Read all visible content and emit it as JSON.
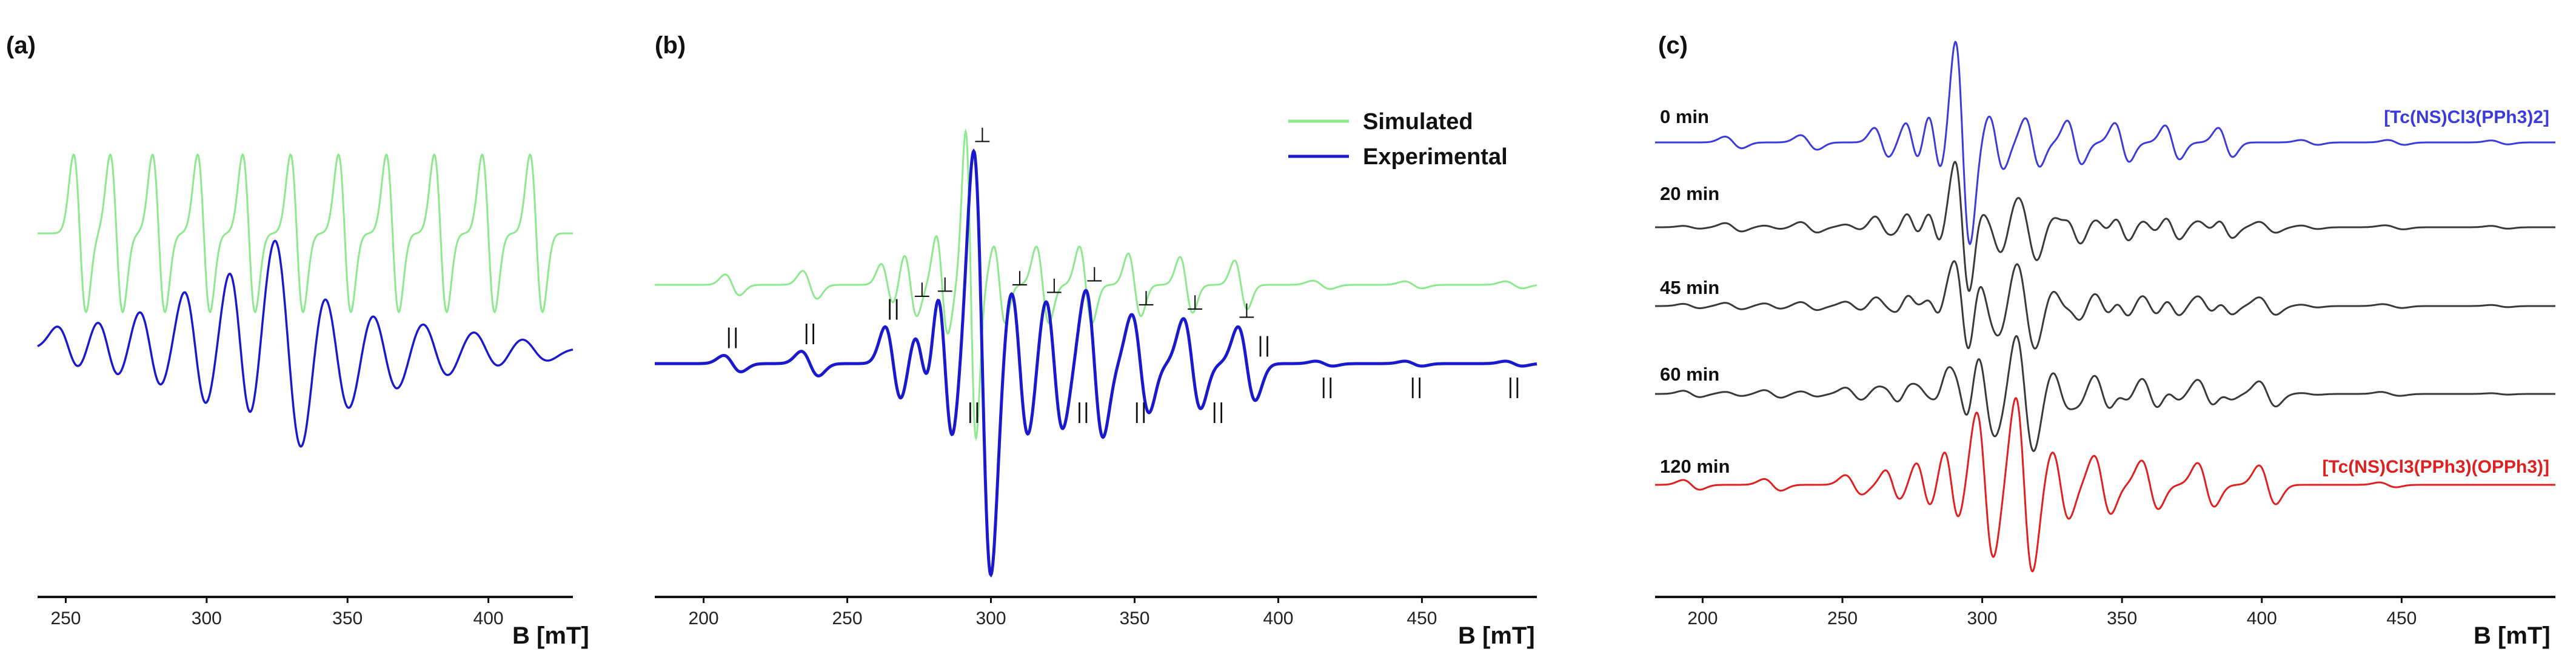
{
  "colors": {
    "simulated": "#8ee88e",
    "experimental": "#1a1acc",
    "experimental_c": "#3b3bdd",
    "intermediate": "#3a3a3a",
    "final": "#e02020",
    "axis": "#111111",
    "marker": "#111111"
  },
  "chart_data": [
    {
      "type": "line",
      "panel_label": "(a)",
      "xlabel": "B [mT]",
      "ylabel": "",
      "xlim": [
        240,
        430
      ],
      "xticks": [
        250,
        300,
        350,
        400
      ],
      "grid": false,
      "series": [
        {
          "name": "",
          "color_key": "simulated",
          "lines": [
            {
              "center": 255,
              "amp": 1.0,
              "width": 2.2
            },
            {
              "center": 268,
              "amp": 1.0,
              "width": 2.2
            },
            {
              "center": 283,
              "amp": 1.0,
              "width": 2.2
            },
            {
              "center": 299,
              "amp": 1.0,
              "width": 2.2
            },
            {
              "center": 315,
              "amp": 1.0,
              "width": 2.2
            },
            {
              "center": 332,
              "amp": 1.0,
              "width": 2.2
            },
            {
              "center": 349,
              "amp": 1.0,
              "width": 2.2
            },
            {
              "center": 366,
              "amp": 1.0,
              "width": 2.2
            },
            {
              "center": 383,
              "amp": 1.0,
              "width": 2.2
            },
            {
              "center": 400,
              "amp": 1.0,
              "width": 2.2
            },
            {
              "center": 417,
              "amp": 1.0,
              "width": 2.2
            }
          ]
        },
        {
          "name": "",
          "color_key": "experimental",
          "lines": [
            {
              "center": 251,
              "amp": 0.45,
              "width": 4
            },
            {
              "center": 265,
              "amp": 0.6,
              "width": 4
            },
            {
              "center": 280,
              "amp": 0.8,
              "width": 4
            },
            {
              "center": 296,
              "amp": 1.2,
              "width": 4
            },
            {
              "center": 312,
              "amp": 1.6,
              "width": 4
            },
            {
              "center": 329,
              "amp": 2.3,
              "width": 5
            },
            {
              "center": 346,
              "amp": 1.4,
              "width": 5
            },
            {
              "center": 363,
              "amp": 0.9,
              "width": 5
            },
            {
              "center": 381,
              "amp": 0.6,
              "width": 5
            },
            {
              "center": 399,
              "amp": 0.4,
              "width": 5
            },
            {
              "center": 416,
              "amp": 0.25,
              "width": 5
            }
          ]
        }
      ]
    },
    {
      "type": "line",
      "panel_label": "(b)",
      "xlabel": "B [mT]",
      "ylabel": "",
      "xlim": [
        183,
        490
      ],
      "xticks": [
        200,
        250,
        300,
        350,
        400,
        450
      ],
      "grid": false,
      "legend": {
        "position": "top-right",
        "entries": [
          "Simulated",
          "Experimental"
        ]
      },
      "series": [
        {
          "name": "Simulated",
          "color_key": "simulated",
          "lines": [
            {
              "center": 210,
              "amp": 0.15,
              "width": 2.5
            },
            {
              "center": 237,
              "amp": 0.2,
              "width": 2.5
            },
            {
              "center": 264,
              "amp": 0.3,
              "width": 2.2
            },
            {
              "center": 272,
              "amp": 0.45,
              "width": 2.2
            },
            {
              "center": 283,
              "amp": 0.7,
              "width": 2.0
            },
            {
              "center": 293,
              "amp": 2.2,
              "width": 1.8
            },
            {
              "center": 303,
              "amp": 0.55,
              "width": 2.0
            },
            {
              "center": 318,
              "amp": 0.55,
              "width": 2.2
            },
            {
              "center": 333,
              "amp": 0.55,
              "width": 2.2
            },
            {
              "center": 350,
              "amp": 0.45,
              "width": 2.2
            },
            {
              "center": 368,
              "amp": 0.4,
              "width": 2.2
            },
            {
              "center": 387,
              "amp": 0.35,
              "width": 2.2
            },
            {
              "center": 415,
              "amp": 0.06,
              "width": 3
            },
            {
              "center": 447,
              "amp": 0.05,
              "width": 3
            },
            {
              "center": 482,
              "amp": 0.05,
              "width": 3
            }
          ]
        },
        {
          "name": "Experimental",
          "color_key": "experimental",
          "lines": [
            {
              "center": 210,
              "amp": 0.1,
              "width": 3
            },
            {
              "center": 237,
              "amp": 0.15,
              "width": 3
            },
            {
              "center": 266,
              "amp": 0.45,
              "width": 2.8
            },
            {
              "center": 276,
              "amp": 0.35,
              "width": 2.6
            },
            {
              "center": 284,
              "amp": 0.9,
              "width": 2.6
            },
            {
              "center": 297,
              "amp": 2.6,
              "width": 3.0
            },
            {
              "center": 310,
              "amp": 0.9,
              "width": 3.0
            },
            {
              "center": 322,
              "amp": 0.8,
              "width": 3.0
            },
            {
              "center": 336,
              "amp": 0.9,
              "width": 3.0
            },
            {
              "center": 352,
              "amp": 0.6,
              "width": 3.0
            },
            {
              "center": 370,
              "amp": 0.55,
              "width": 3.0
            },
            {
              "center": 389,
              "amp": 0.45,
              "width": 3.0
            },
            {
              "center": 416,
              "amp": 0.03,
              "width": 3
            },
            {
              "center": 447,
              "amp": 0.03,
              "width": 3
            },
            {
              "center": 482,
              "amp": 0.03,
              "width": 3
            }
          ]
        }
      ],
      "markers": {
        "parallel_up": [
          210,
          237,
          266,
          395
        ],
        "parallel_down": [
          294,
          332,
          352,
          379,
          417,
          448,
          482
        ],
        "perp": [
          276,
          284,
          297,
          310,
          322,
          336,
          354,
          371,
          389
        ],
        "parallel_symbol": "||",
        "perp_symbol": "⊥"
      }
    },
    {
      "type": "line",
      "panel_label": "(c)",
      "xlabel": "B [mT]",
      "ylabel": "",
      "xlim": [
        183,
        505
      ],
      "xticks": [
        200,
        250,
        300,
        350,
        400,
        450
      ],
      "grid": false,
      "series": [
        {
          "name": "0 min",
          "species": "[Tc(NS)Cl3(PPh3)2]",
          "species_color_key": "experimental_c",
          "color_key": "experimental_c"
        },
        {
          "name": "20 min",
          "species": "",
          "color_key": "intermediate"
        },
        {
          "name": "45 min",
          "species": "",
          "color_key": "intermediate"
        },
        {
          "name": "60 min",
          "species": "",
          "color_key": "intermediate"
        },
        {
          "name": "120 min",
          "species": "[Tc(NS)Cl3(PPh3)(OPPh3)]",
          "species_color_key": "final",
          "color_key": "final"
        }
      ],
      "spectra_lines": {
        "a": [
          {
            "center": 211,
            "amp": 0.12,
            "width": 3
          },
          {
            "center": 238,
            "amp": 0.15,
            "width": 3
          },
          {
            "center": 264,
            "amp": 0.3,
            "width": 2.6
          },
          {
            "center": 275,
            "amp": 0.4,
            "width": 2.4
          },
          {
            "center": 283,
            "amp": 0.6,
            "width": 2.4
          },
          {
            "center": 293,
            "amp": 2.1,
            "width": 2.6
          },
          {
            "center": 305,
            "amp": 0.55,
            "width": 2.6
          },
          {
            "center": 318,
            "amp": 0.5,
            "width": 2.6
          },
          {
            "center": 333,
            "amp": 0.45,
            "width": 2.6
          },
          {
            "center": 350,
            "amp": 0.4,
            "width": 2.6
          },
          {
            "center": 368,
            "amp": 0.35,
            "width": 2.6
          },
          {
            "center": 387,
            "amp": 0.3,
            "width": 2.6
          },
          {
            "center": 417,
            "amp": 0.05,
            "width": 3
          },
          {
            "center": 448,
            "amp": 0.05,
            "width": 3
          },
          {
            "center": 485,
            "amp": 0.04,
            "width": 3
          }
        ],
        "b": [
          {
            "center": 196,
            "amp": 0.1,
            "width": 3
          },
          {
            "center": 225,
            "amp": 0.12,
            "width": 3
          },
          {
            "center": 254,
            "amp": 0.2,
            "width": 3
          },
          {
            "center": 268,
            "amp": 0.3,
            "width": 2.6
          },
          {
            "center": 279,
            "amp": 0.45,
            "width": 2.6
          },
          {
            "center": 289,
            "amp": 0.7,
            "width": 2.6
          },
          {
            "center": 301,
            "amp": 1.5,
            "width": 3
          },
          {
            "center": 315,
            "amp": 1.8,
            "width": 3
          },
          {
            "center": 328,
            "amp": 0.7,
            "width": 3
          },
          {
            "center": 343,
            "amp": 0.6,
            "width": 3
          },
          {
            "center": 360,
            "amp": 0.5,
            "width": 3
          },
          {
            "center": 380,
            "amp": 0.45,
            "width": 3
          },
          {
            "center": 402,
            "amp": 0.4,
            "width": 3
          },
          {
            "center": 445,
            "amp": 0.05,
            "width": 3
          }
        ],
        "mix_a": [
          1.0,
          0.72,
          0.55,
          0.35,
          0.0
        ]
      }
    }
  ]
}
